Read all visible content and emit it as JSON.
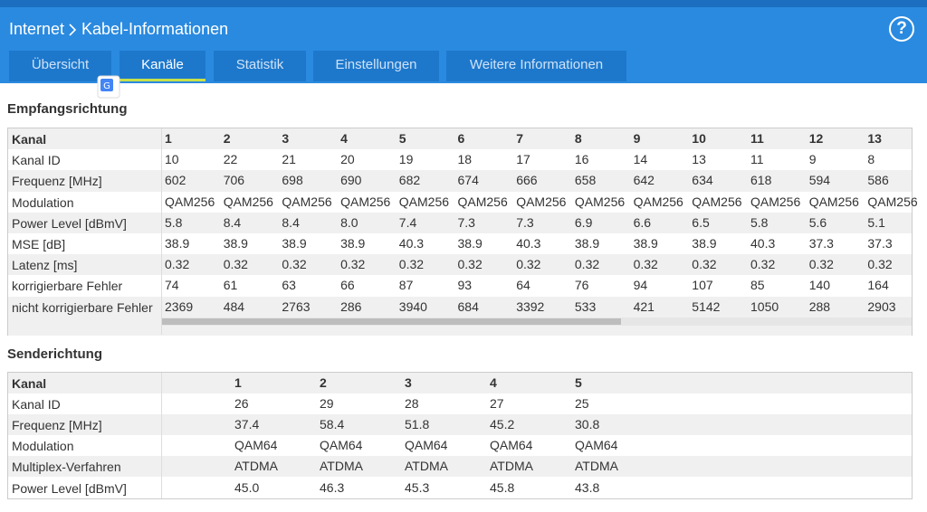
{
  "header": {
    "breadcrumb": [
      "Internet",
      "Kabel-Informationen"
    ],
    "help": "?"
  },
  "tabs": [
    {
      "label": "Übersicht",
      "active": false
    },
    {
      "label": "Kanäle",
      "active": true
    },
    {
      "label": "Statistik",
      "active": false
    },
    {
      "label": "Einstellungen",
      "active": false
    },
    {
      "label": "Weitere Informationen",
      "active": false
    }
  ],
  "downstream": {
    "title": "Empfangsrichtung",
    "rows": [
      {
        "label": "Kanal",
        "cells": [
          "1",
          "2",
          "3",
          "4",
          "5",
          "6",
          "7",
          "8",
          "9",
          "10",
          "11",
          "12",
          "13"
        ]
      },
      {
        "label": "Kanal ID",
        "cells": [
          "10",
          "22",
          "21",
          "20",
          "19",
          "18",
          "17",
          "16",
          "14",
          "13",
          "11",
          "9",
          "8"
        ]
      },
      {
        "label": "Frequenz [MHz]",
        "cells": [
          "602",
          "706",
          "698",
          "690",
          "682",
          "674",
          "666",
          "658",
          "642",
          "634",
          "618",
          "594",
          "586"
        ]
      },
      {
        "label": "Modulation",
        "cells": [
          "QAM256",
          "QAM256",
          "QAM256",
          "QAM256",
          "QAM256",
          "QAM256",
          "QAM256",
          "QAM256",
          "QAM256",
          "QAM256",
          "QAM256",
          "QAM256",
          "QAM256"
        ]
      },
      {
        "label": "Power Level [dBmV]",
        "cells": [
          "5.8",
          "8.4",
          "8.4",
          "8.0",
          "7.4",
          "7.3",
          "7.3",
          "6.9",
          "6.6",
          "6.5",
          "5.8",
          "5.6",
          "5.1"
        ]
      },
      {
        "label": "MSE [dB]",
        "cells": [
          "38.9",
          "38.9",
          "38.9",
          "38.9",
          "40.3",
          "38.9",
          "40.3",
          "38.9",
          "38.9",
          "38.9",
          "40.3",
          "37.3",
          "37.3"
        ]
      },
      {
        "label": "Latenz [ms]",
        "cells": [
          "0.32",
          "0.32",
          "0.32",
          "0.32",
          "0.32",
          "0.32",
          "0.32",
          "0.32",
          "0.32",
          "0.32",
          "0.32",
          "0.32",
          "0.32"
        ]
      },
      {
        "label": "korrigierbare Fehler",
        "cells": [
          "74",
          "61",
          "63",
          "66",
          "87",
          "93",
          "64",
          "76",
          "94",
          "107",
          "85",
          "140",
          "164"
        ]
      },
      {
        "label": "nicht korrigierbare Fehler",
        "cells": [
          "2369",
          "484",
          "2763",
          "286",
          "3940",
          "684",
          "3392",
          "533",
          "421",
          "5142",
          "1050",
          "288",
          "2903"
        ]
      }
    ]
  },
  "upstream": {
    "title": "Senderichtung",
    "rows": [
      {
        "label": "Kanal",
        "cells": [
          "1",
          "2",
          "3",
          "4",
          "5"
        ]
      },
      {
        "label": "Kanal ID",
        "cells": [
          "26",
          "29",
          "28",
          "27",
          "25"
        ]
      },
      {
        "label": "Frequenz [MHz]",
        "cells": [
          "37.4",
          "58.4",
          "51.8",
          "45.2",
          "30.8"
        ]
      },
      {
        "label": "Modulation",
        "cells": [
          "QAM64",
          "QAM64",
          "QAM64",
          "QAM64",
          "QAM64"
        ]
      },
      {
        "label": "Multiplex-Verfahren",
        "cells": [
          "ATDMA",
          "ATDMA",
          "ATDMA",
          "ATDMA",
          "ATDMA"
        ]
      },
      {
        "label": "Power Level [dBmV]",
        "cells": [
          "45.0",
          "46.3",
          "45.3",
          "45.8",
          "43.8"
        ]
      }
    ]
  }
}
